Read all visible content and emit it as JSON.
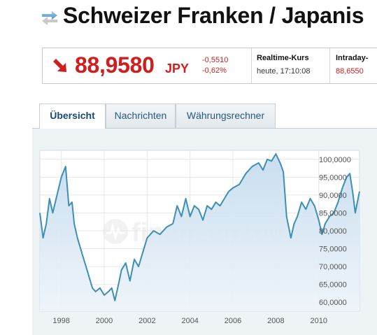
{
  "header": {
    "title": "Schweizer Franken / Japanis",
    "icon": "exchange-arrows-icon"
  },
  "quote": {
    "trend_icon": "arrow-down-red-icon",
    "price": "88,9580",
    "currency": "JPY",
    "change_abs": "-0,5510",
    "change_pct": "-0,62%",
    "realtime_label": "Realtime-Kurs",
    "realtime_value": "heute, 17:10:08",
    "intraday_label": "Intraday-",
    "intraday_value": "88,6550",
    "negative_color": "#d01e1e"
  },
  "tabs": [
    {
      "label": "Übersicht",
      "active": true
    },
    {
      "label": "Nachrichten",
      "active": false
    },
    {
      "label": "Währungsrechner",
      "active": false
    }
  ],
  "watermark": "finanzen100",
  "chart_data": {
    "type": "area",
    "title": "",
    "xlabel": "",
    "ylabel": "",
    "x_ticks": [
      "1998",
      "2000",
      "2002",
      "2004",
      "2006",
      "2008",
      "2010"
    ],
    "y_ticks": [
      "100,0000",
      "95,0000",
      "90,0000",
      "85,0000",
      "80,0000",
      "75,0000",
      "70,0000",
      "65,0000",
      "60,0000"
    ],
    "ylim": [
      57.5,
      102.5
    ],
    "xlim": [
      1997.0,
      2011.9
    ],
    "grid": true,
    "line_color": "#3d8fb3",
    "series": [
      {
        "x": [
          1997.0,
          1997.15,
          1997.3,
          1997.45,
          1997.6,
          1997.8,
          1998.0,
          1998.2,
          1998.35,
          1998.5,
          1998.6,
          1998.75,
          1999.0,
          1999.2,
          1999.45,
          1999.6,
          1999.8,
          2000.0,
          2000.2,
          2000.35,
          2000.5,
          2000.7,
          2000.8,
          2001.0,
          2001.2,
          2001.4,
          2001.6,
          2001.8,
          2002.0,
          2002.3,
          2002.6,
          2002.9,
          2003.2,
          2003.4,
          2003.6,
          2003.8,
          2004.0,
          2004.2,
          2004.4,
          2004.6,
          2004.8,
          2005.0,
          2005.2,
          2005.4,
          2005.6,
          2005.8,
          2006.0,
          2006.3,
          2006.6,
          2006.9,
          2007.2,
          2007.4,
          2007.6,
          2007.8,
          2008.0,
          2008.2,
          2008.35,
          2008.5,
          2008.7,
          2008.85,
          2009.0,
          2009.2,
          2009.4,
          2009.6,
          2009.8,
          2010.0,
          2010.15,
          2010.3,
          2010.5,
          2010.7,
          2010.9,
          2011.1,
          2011.3,
          2011.45,
          2011.6,
          2011.7,
          2011.8,
          2011.9
        ],
        "y": [
          85.0,
          78.0,
          82.0,
          89.0,
          85.0,
          90.0,
          95.0,
          98.0,
          87.0,
          88.0,
          82.0,
          78.0,
          73.0,
          69.0,
          64.0,
          63.0,
          64.0,
          62.0,
          63.0,
          64.0,
          60.5,
          66.0,
          69.0,
          71.0,
          66.0,
          72.0,
          70.0,
          74.0,
          78.0,
          80.0,
          79.0,
          81.0,
          82.0,
          87.0,
          84.0,
          89.0,
          84.0,
          87.0,
          86.0,
          83.0,
          87.0,
          86.0,
          88.0,
          87.0,
          89.0,
          91.0,
          92.0,
          93.0,
          96.0,
          98.0,
          99.0,
          97.0,
          100.0,
          99.5,
          101.5,
          99.0,
          96.5,
          84.0,
          78.0,
          82.0,
          84.0,
          88.0,
          86.0,
          89.0,
          87.0,
          83.0,
          79.0,
          82.0,
          84.0,
          85.0,
          88.0,
          92.0,
          95.0,
          96.0,
          90.0,
          85.0,
          88.0,
          91.0
        ]
      }
    ]
  }
}
